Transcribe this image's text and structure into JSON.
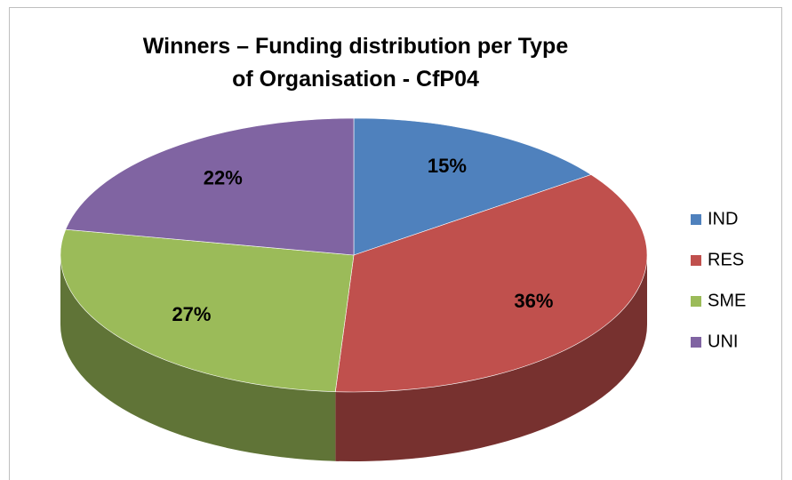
{
  "chart_data": {
    "type": "pie3d",
    "title": "Winners – Funding distribution per Type of Organisation - CfP04",
    "categories": [
      "IND",
      "RES",
      "SME",
      "UNI"
    ],
    "values": [
      15,
      36,
      27,
      22
    ],
    "value_labels": [
      "15%",
      "36%",
      "27%",
      "22%"
    ],
    "colors": [
      "#4f81bd",
      "#c0504d",
      "#9bbb59",
      "#8064a2"
    ],
    "legend": "right"
  }
}
